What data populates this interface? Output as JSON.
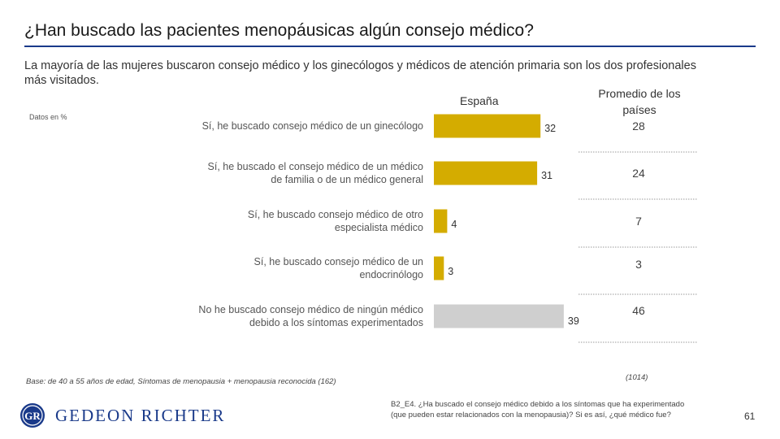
{
  "title": "¿Han buscado las pacientes menopáusicas algún consejo médico?",
  "subtitle": "La mayoría de las mujeres buscaron consejo médico y los ginecólogos y médicos de atención primaria son los dos profesionales más visitados.",
  "data_note": "Datos en %",
  "column_headers": {
    "spain": "España",
    "average": "Promedio de los países"
  },
  "chart_data": {
    "type": "bar",
    "orientation": "horizontal",
    "categories": [
      "Sí, he buscado consejo médico de un ginecólogo",
      "Sí, he buscado el consejo médico de un médico de familia o de un médico general",
      "Sí, he buscado consejo médico de otro especialista médico",
      "Sí, he buscado consejo médico de un endocrinólogo",
      "No he buscado consejo médico de ningún médico debido a los síntomas experimentados"
    ],
    "series": [
      {
        "name": "España",
        "values": [
          32,
          31,
          4,
          3,
          39
        ]
      },
      {
        "name": "Promedio de los países",
        "values": [
          28,
          24,
          7,
          3,
          46
        ]
      }
    ],
    "bar_colors": [
      "#d4ac00",
      "#d4ac00",
      "#d4ac00",
      "#d4ac00",
      "#cfcfcf"
    ],
    "xlim": [
      0,
      50
    ],
    "grid": false
  },
  "base_note": "Base: de 40 a 55 años de edad, Síntomas de menopausia + menopausia reconocida (162)",
  "base_count": "(1014)",
  "logo": {
    "text": "GEDEON RICHTER",
    "mark": "GR"
  },
  "question": "B2_E4. ¿Ha buscado el consejo médico debido a los síntomas que ha experimentado (que pueden estar relacionados con la menopausia)? Si es así, ¿qué médico fue?",
  "page_number": "61",
  "colors": {
    "accent_bar": "#d4ac00",
    "no_advice_bar": "#cfcfcf",
    "brand_blue": "#1a3a8a"
  }
}
